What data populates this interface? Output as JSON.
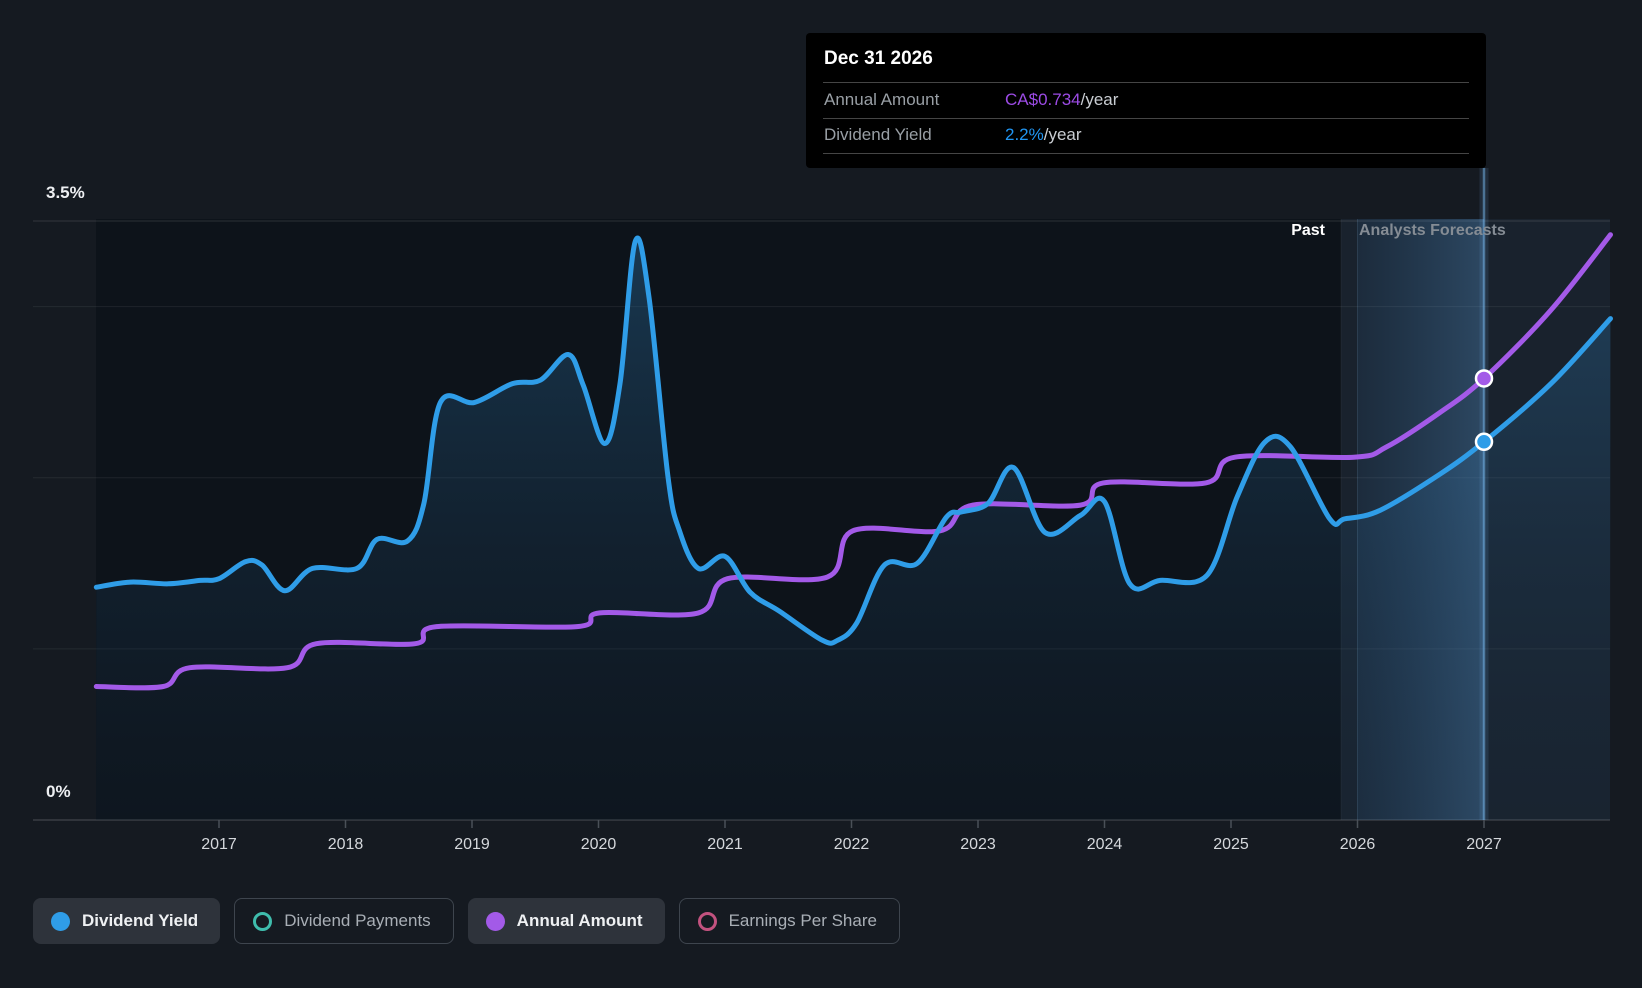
{
  "tooltip": {
    "date": "Dec 31 2026",
    "rows": [
      {
        "label": "Annual Amount",
        "value": "CA$0.734",
        "suffix": "/year",
        "color": "#9C4BE5"
      },
      {
        "label": "Dividend Yield",
        "value": "2.2%",
        "suffix": "/year",
        "color": "#2196F3"
      }
    ]
  },
  "sections": {
    "past_label": "Past",
    "forecast_label": "Analysts Forecasts"
  },
  "axis": {
    "y_top_label": "3.5%",
    "y_bottom_label": "0%",
    "years": [
      "2017",
      "2018",
      "2019",
      "2020",
      "2021",
      "2022",
      "2023",
      "2024",
      "2025",
      "2026",
      "2027"
    ]
  },
  "legend": [
    {
      "label": "Dividend Yield",
      "marker": "filled",
      "color": "#2F9DE8",
      "active": true
    },
    {
      "label": "Dividend Payments",
      "marker": "ring",
      "color": "#3FBDAD",
      "active": false
    },
    {
      "label": "Annual Amount",
      "marker": "filled",
      "color": "#A35AE8",
      "active": true
    },
    {
      "label": "Earnings Per Share",
      "marker": "ring",
      "color": "#C2527F",
      "active": false
    }
  ],
  "chart_data": {
    "type": "line",
    "x_axis": {
      "range": [
        2016.03,
        2028.0
      ],
      "ticks": [
        2017,
        2018,
        2019,
        2020,
        2021,
        2022,
        2023,
        2024,
        2025,
        2026,
        2027
      ]
    },
    "y_axis": {
      "range": [
        0,
        3.5
      ],
      "unit": "%",
      "gridlines": [
        0,
        1,
        2,
        3,
        3.5
      ],
      "labeled": [
        3.5,
        0
      ]
    },
    "past_until": 2025.87,
    "highlight_band": [
      2026.0,
      2027.0
    ],
    "cursor": {
      "x": 2027.0,
      "date": "Dec 31 2026",
      "annual_amount": "CA$0.734/year",
      "dividend_yield": "2.2%/year"
    },
    "series": [
      {
        "name": "Dividend Yield",
        "color": "#2F9DE8",
        "style": "area",
        "unit": "%",
        "points": [
          [
            2016.03,
            1.36
          ],
          [
            2016.3,
            1.39
          ],
          [
            2016.6,
            1.38
          ],
          [
            2016.85,
            1.4
          ],
          [
            2017.0,
            1.41
          ],
          [
            2017.21,
            1.51
          ],
          [
            2017.34,
            1.49
          ],
          [
            2017.52,
            1.34
          ],
          [
            2017.74,
            1.47
          ],
          [
            2018.09,
            1.47
          ],
          [
            2018.25,
            1.64
          ],
          [
            2018.49,
            1.63
          ],
          [
            2018.62,
            1.85
          ],
          [
            2018.75,
            2.44
          ],
          [
            2019.02,
            2.44
          ],
          [
            2019.32,
            2.55
          ],
          [
            2019.54,
            2.57
          ],
          [
            2019.76,
            2.72
          ],
          [
            2019.88,
            2.54
          ],
          [
            2020.05,
            2.2
          ],
          [
            2020.17,
            2.55
          ],
          [
            2020.29,
            3.38
          ],
          [
            2020.4,
            3.05
          ],
          [
            2020.55,
            2.0
          ],
          [
            2020.64,
            1.69
          ],
          [
            2020.79,
            1.47
          ],
          [
            2021.0,
            1.54
          ],
          [
            2021.2,
            1.33
          ],
          [
            2021.43,
            1.22
          ],
          [
            2021.77,
            1.05
          ],
          [
            2021.89,
            1.05
          ],
          [
            2022.04,
            1.15
          ],
          [
            2022.26,
            1.49
          ],
          [
            2022.52,
            1.5
          ],
          [
            2022.75,
            1.77
          ],
          [
            2022.87,
            1.8
          ],
          [
            2023.08,
            1.85
          ],
          [
            2023.28,
            2.06
          ],
          [
            2023.53,
            1.68
          ],
          [
            2023.81,
            1.78
          ],
          [
            2024.0,
            1.86
          ],
          [
            2024.2,
            1.38
          ],
          [
            2024.44,
            1.4
          ],
          [
            2024.81,
            1.43
          ],
          [
            2025.05,
            1.89
          ],
          [
            2025.27,
            2.21
          ],
          [
            2025.47,
            2.18
          ],
          [
            2025.78,
            1.76
          ],
          [
            2025.9,
            1.76
          ],
          [
            2026.18,
            1.81
          ],
          [
            2026.65,
            2.02
          ],
          [
            2027.0,
            2.21
          ],
          [
            2027.53,
            2.55
          ],
          [
            2028.0,
            2.93
          ]
        ]
      },
      {
        "name": "Annual Amount",
        "color": "#A35AE8",
        "style": "line",
        "unit": "pct-axis-equivalent",
        "points": [
          [
            2016.03,
            0.78
          ],
          [
            2016.56,
            0.78
          ],
          [
            2016.77,
            0.89
          ],
          [
            2017.54,
            0.89
          ],
          [
            2017.77,
            1.03
          ],
          [
            2018.55,
            1.03
          ],
          [
            2018.72,
            1.13
          ],
          [
            2019.83,
            1.13
          ],
          [
            2020.01,
            1.21
          ],
          [
            2020.79,
            1.21
          ],
          [
            2021.02,
            1.41
          ],
          [
            2021.81,
            1.42
          ],
          [
            2022.01,
            1.69
          ],
          [
            2022.7,
            1.69
          ],
          [
            2022.96,
            1.84
          ],
          [
            2023.81,
            1.84
          ],
          [
            2023.99,
            1.97
          ],
          [
            2024.8,
            1.97
          ],
          [
            2025.03,
            2.12
          ],
          [
            2025.97,
            2.12
          ],
          [
            2026.23,
            2.18
          ],
          [
            2026.65,
            2.38
          ],
          [
            2027.0,
            2.58
          ],
          [
            2027.53,
            2.98
          ],
          [
            2028.0,
            3.42
          ]
        ]
      }
    ],
    "markers": [
      {
        "series": "Annual Amount",
        "x": 2027.0,
        "y": 2.58
      },
      {
        "series": "Dividend Yield",
        "x": 2027.0,
        "y": 2.21
      }
    ]
  }
}
